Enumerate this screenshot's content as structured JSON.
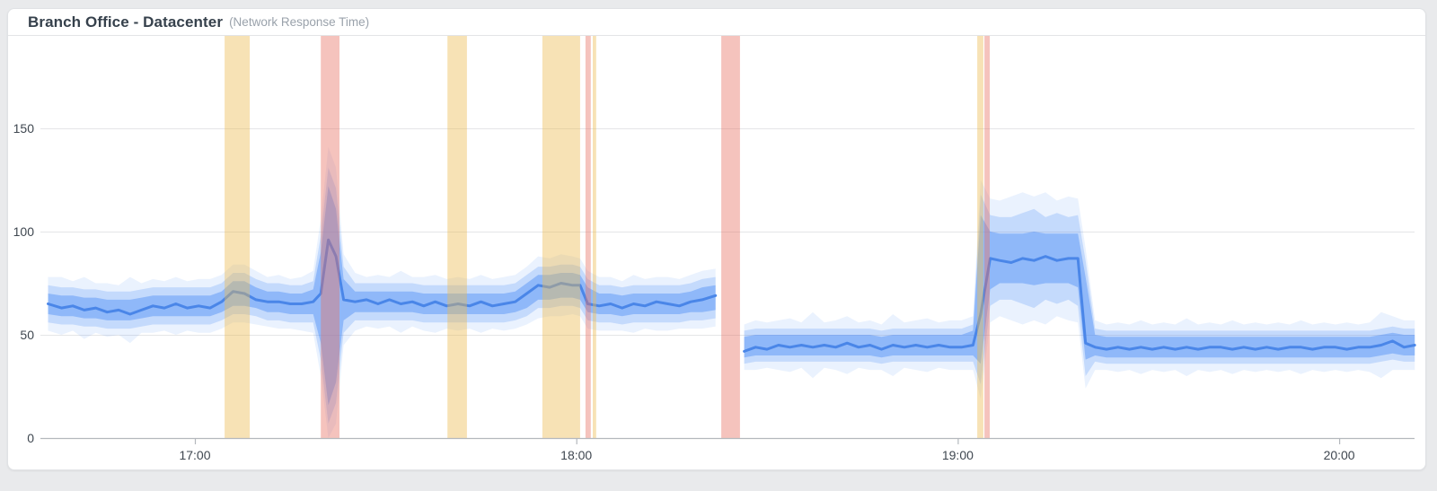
{
  "header": {
    "title": "Branch Office - Datacenter",
    "subtitle": "(Network Response Time)"
  },
  "chart_data": {
    "type": "line",
    "title": "Branch Office - Datacenter",
    "subtitle": "Network Response Time",
    "xlabel": "",
    "ylabel": "",
    "grid": true,
    "legend": false,
    "x_axis": {
      "ticks": [
        {
          "label": "17:00",
          "t": 17
        },
        {
          "label": "18:00",
          "t": 18
        },
        {
          "label": "19:00",
          "t": 19
        },
        {
          "label": "20:00",
          "t": 20
        }
      ],
      "range_hours": [
        16.595,
        20.198
      ]
    },
    "y_axis": {
      "ticks": [
        "0",
        "50",
        "100",
        "150"
      ],
      "tick_values": [
        0,
        50,
        100,
        150
      ],
      "range": [
        0,
        195
      ]
    },
    "colors": {
      "line": "#4a86e8",
      "band_inner": "rgba(66,133,244,0.40)",
      "band_mid": "rgba(66,133,244,0.22)",
      "band_outer": "rgba(66,133,244,0.11)",
      "warning_band": "rgba(235,185,78,0.42)",
      "error_band": "rgba(231,112,97,0.42)",
      "gridline": "#e4e5e7",
      "axis_line": "#b4b8bd",
      "tick_label": "#3f4750"
    },
    "point_format": "[time_decimal_hours, actual_value, band_center, band_half_inner, band_half_mid, band_half_outer]",
    "series": [
      {
        "name": "Network Response Time",
        "points": [
          [
            16.615,
            65,
            65,
            5,
            9,
            13
          ],
          [
            16.65,
            63,
            64,
            5,
            9,
            14
          ],
          [
            16.68,
            64,
            64,
            5,
            9,
            12
          ],
          [
            16.71,
            62,
            63,
            5,
            9,
            15
          ],
          [
            16.74,
            63,
            63,
            5,
            9,
            12
          ],
          [
            16.77,
            61,
            62,
            5,
            9,
            13
          ],
          [
            16.8,
            62,
            62,
            5,
            9,
            12
          ],
          [
            16.83,
            60,
            62,
            5,
            9,
            16
          ],
          [
            16.86,
            62,
            63,
            5,
            9,
            12
          ],
          [
            16.89,
            64,
            64,
            5,
            9,
            13
          ],
          [
            16.92,
            63,
            64,
            5,
            9,
            12
          ],
          [
            16.95,
            65,
            64,
            5,
            9,
            14
          ],
          [
            16.98,
            63,
            64,
            5,
            9,
            12
          ],
          [
            17.01,
            64,
            64,
            5,
            9,
            13
          ],
          [
            17.04,
            63,
            64,
            5,
            9,
            13
          ],
          [
            17.07,
            66,
            66,
            5,
            9,
            13
          ],
          [
            17.1,
            71,
            70,
            6,
            10,
            14
          ],
          [
            17.13,
            70,
            70,
            6,
            10,
            14
          ],
          [
            17.16,
            67,
            68,
            5,
            9,
            13
          ],
          [
            17.19,
            66,
            66,
            5,
            9,
            12
          ],
          [
            17.22,
            66,
            66,
            5,
            9,
            13
          ],
          [
            17.25,
            65,
            65,
            5,
            9,
            12
          ],
          [
            17.28,
            65,
            65,
            5,
            9,
            13
          ],
          [
            17.31,
            66,
            66,
            6,
            10,
            15
          ],
          [
            17.33,
            70,
            68,
            22,
            30,
            38
          ],
          [
            17.35,
            96,
            69,
            53,
            62,
            72
          ],
          [
            17.37,
            88,
            69,
            42,
            52,
            62
          ],
          [
            17.39,
            67,
            67,
            10,
            16,
            22
          ],
          [
            17.42,
            66,
            66,
            5,
            9,
            14
          ],
          [
            17.45,
            67,
            66,
            5,
            9,
            12
          ],
          [
            17.48,
            65,
            66,
            5,
            9,
            13
          ],
          [
            17.51,
            67,
            66,
            5,
            9,
            12
          ],
          [
            17.54,
            65,
            66,
            5,
            9,
            15
          ],
          [
            17.57,
            66,
            66,
            5,
            9,
            12
          ],
          [
            17.6,
            64,
            65,
            5,
            9,
            13
          ],
          [
            17.63,
            66,
            65,
            5,
            9,
            14
          ],
          [
            17.66,
            64,
            65,
            5,
            9,
            12
          ],
          [
            17.69,
            65,
            65,
            5,
            9,
            13
          ],
          [
            17.72,
            64,
            65,
            5,
            9,
            12
          ],
          [
            17.75,
            66,
            65,
            5,
            9,
            14
          ],
          [
            17.78,
            64,
            65,
            5,
            9,
            12
          ],
          [
            17.81,
            65,
            65,
            5,
            9,
            13
          ],
          [
            17.84,
            66,
            66,
            5,
            9,
            13
          ],
          [
            17.87,
            70,
            69,
            6,
            10,
            14
          ],
          [
            17.9,
            74,
            73,
            6,
            10,
            15
          ],
          [
            17.93,
            73,
            73,
            6,
            10,
            14
          ],
          [
            17.96,
            75,
            74,
            6,
            10,
            15
          ],
          [
            17.99,
            74,
            74,
            6,
            10,
            14
          ],
          [
            18.01,
            74,
            73,
            6,
            10,
            14
          ],
          [
            18.03,
            65,
            67,
            6,
            10,
            14
          ],
          [
            18.06,
            64,
            65,
            5,
            9,
            13
          ],
          [
            18.09,
            65,
            65,
            5,
            9,
            13
          ],
          [
            18.12,
            63,
            64,
            5,
            9,
            12
          ],
          [
            18.15,
            65,
            65,
            5,
            9,
            14
          ],
          [
            18.18,
            64,
            65,
            5,
            9,
            12
          ],
          [
            18.21,
            66,
            65,
            5,
            9,
            13
          ],
          [
            18.24,
            65,
            65,
            5,
            9,
            13
          ],
          [
            18.27,
            64,
            65,
            5,
            9,
            12
          ],
          [
            18.3,
            66,
            66,
            5,
            9,
            13
          ],
          [
            18.33,
            67,
            67,
            6,
            10,
            14
          ],
          [
            18.365,
            69,
            68,
            6,
            10,
            14
          ],
          [
            18.4,
            null,
            null,
            0,
            0,
            0
          ],
          [
            18.44,
            42,
            44,
            5,
            8,
            11
          ],
          [
            18.47,
            44,
            45,
            5,
            8,
            12
          ],
          [
            18.5,
            43,
            45,
            5,
            8,
            11
          ],
          [
            18.53,
            45,
            45,
            5,
            8,
            12
          ],
          [
            18.56,
            44,
            45,
            5,
            8,
            13
          ],
          [
            18.59,
            45,
            45,
            5,
            8,
            11
          ],
          [
            18.62,
            44,
            45,
            5,
            8,
            16
          ],
          [
            18.65,
            45,
            45,
            5,
            8,
            11
          ],
          [
            18.68,
            44,
            45,
            5,
            8,
            12
          ],
          [
            18.71,
            46,
            45,
            5,
            8,
            14
          ],
          [
            18.74,
            44,
            45,
            5,
            8,
            11
          ],
          [
            18.77,
            45,
            45,
            5,
            8,
            12
          ],
          [
            18.8,
            43,
            44,
            5,
            8,
            11
          ],
          [
            18.83,
            45,
            45,
            5,
            8,
            15
          ],
          [
            18.86,
            44,
            45,
            5,
            8,
            11
          ],
          [
            18.89,
            45,
            45,
            5,
            8,
            12
          ],
          [
            18.92,
            44,
            45,
            5,
            8,
            13
          ],
          [
            18.95,
            45,
            45,
            5,
            8,
            11
          ],
          [
            18.98,
            44,
            45,
            5,
            8,
            12
          ],
          [
            19.01,
            44,
            45,
            5,
            8,
            12
          ],
          [
            19.04,
            45,
            46,
            6,
            9,
            13
          ],
          [
            19.06,
            60,
            72,
            36,
            46,
            53
          ],
          [
            19.085,
            87,
            86,
            14,
            22,
            30
          ],
          [
            19.11,
            86,
            87,
            12,
            20,
            28
          ],
          [
            19.14,
            85,
            87,
            12,
            20,
            30
          ],
          [
            19.17,
            87,
            87,
            12,
            22,
            32
          ],
          [
            19.2,
            86,
            87,
            13,
            24,
            30
          ],
          [
            19.23,
            88,
            87,
            12,
            20,
            32
          ],
          [
            19.26,
            86,
            87,
            12,
            22,
            28
          ],
          [
            19.29,
            87,
            87,
            12,
            20,
            30
          ],
          [
            19.315,
            87,
            86,
            13,
            22,
            30
          ],
          [
            19.335,
            46,
            58,
            20,
            28,
            34
          ],
          [
            19.36,
            44,
            45,
            5,
            8,
            12
          ],
          [
            19.39,
            43,
            44,
            5,
            8,
            11
          ],
          [
            19.42,
            44,
            44,
            5,
            8,
            12
          ],
          [
            19.45,
            43,
            44,
            5,
            8,
            11
          ],
          [
            19.48,
            44,
            44,
            5,
            8,
            13
          ],
          [
            19.51,
            43,
            44,
            5,
            8,
            11
          ],
          [
            19.54,
            44,
            44,
            5,
            8,
            12
          ],
          [
            19.57,
            43,
            44,
            5,
            8,
            11
          ],
          [
            19.6,
            44,
            44,
            5,
            8,
            14
          ],
          [
            19.63,
            43,
            44,
            5,
            8,
            11
          ],
          [
            19.66,
            44,
            44,
            5,
            8,
            12
          ],
          [
            19.69,
            44,
            44,
            5,
            8,
            11
          ],
          [
            19.72,
            43,
            44,
            5,
            8,
            13
          ],
          [
            19.75,
            44,
            44,
            5,
            8,
            11
          ],
          [
            19.78,
            43,
            44,
            5,
            8,
            12
          ],
          [
            19.81,
            44,
            44,
            5,
            8,
            11
          ],
          [
            19.84,
            43,
            44,
            5,
            8,
            12
          ],
          [
            19.87,
            44,
            44,
            5,
            8,
            11
          ],
          [
            19.9,
            44,
            44,
            5,
            8,
            13
          ],
          [
            19.93,
            43,
            44,
            5,
            8,
            11
          ],
          [
            19.96,
            44,
            44,
            5,
            8,
            12
          ],
          [
            19.99,
            44,
            44,
            5,
            8,
            11
          ],
          [
            20.02,
            43,
            44,
            5,
            8,
            12
          ],
          [
            20.05,
            44,
            44,
            5,
            8,
            11
          ],
          [
            20.08,
            44,
            44,
            5,
            8,
            12
          ],
          [
            20.11,
            45,
            45,
            5,
            8,
            16
          ],
          [
            20.14,
            47,
            46,
            5,
            8,
            13
          ],
          [
            20.17,
            44,
            45,
            5,
            8,
            12
          ],
          [
            20.198,
            45,
            45,
            5,
            8,
            12
          ]
        ]
      }
    ],
    "anomaly_windows": [
      {
        "type": "warning",
        "start": 17.078,
        "end": 17.144,
        "label": "17:05–17:09"
      },
      {
        "type": "error",
        "start": 17.33,
        "end": 17.379,
        "label": "17:20–17:23"
      },
      {
        "type": "warning",
        "start": 17.662,
        "end": 17.713,
        "label": "17:40–17:43"
      },
      {
        "type": "warning",
        "start": 17.911,
        "end": 18.01,
        "label": "17:55–18:01"
      },
      {
        "type": "error",
        "start": 18.024,
        "end": 18.038,
        "label": "18:01–18:02"
      },
      {
        "type": "warning",
        "start": 18.043,
        "end": 18.052,
        "label": "18:03"
      },
      {
        "type": "error",
        "start": 18.38,
        "end": 18.429,
        "label": "18:23–18:26"
      },
      {
        "type": "warning",
        "start": 19.051,
        "end": 19.067,
        "label": "19:03–19:04"
      },
      {
        "type": "error",
        "start": 19.07,
        "end": 19.084,
        "label": "19:04–19:05"
      }
    ]
  }
}
